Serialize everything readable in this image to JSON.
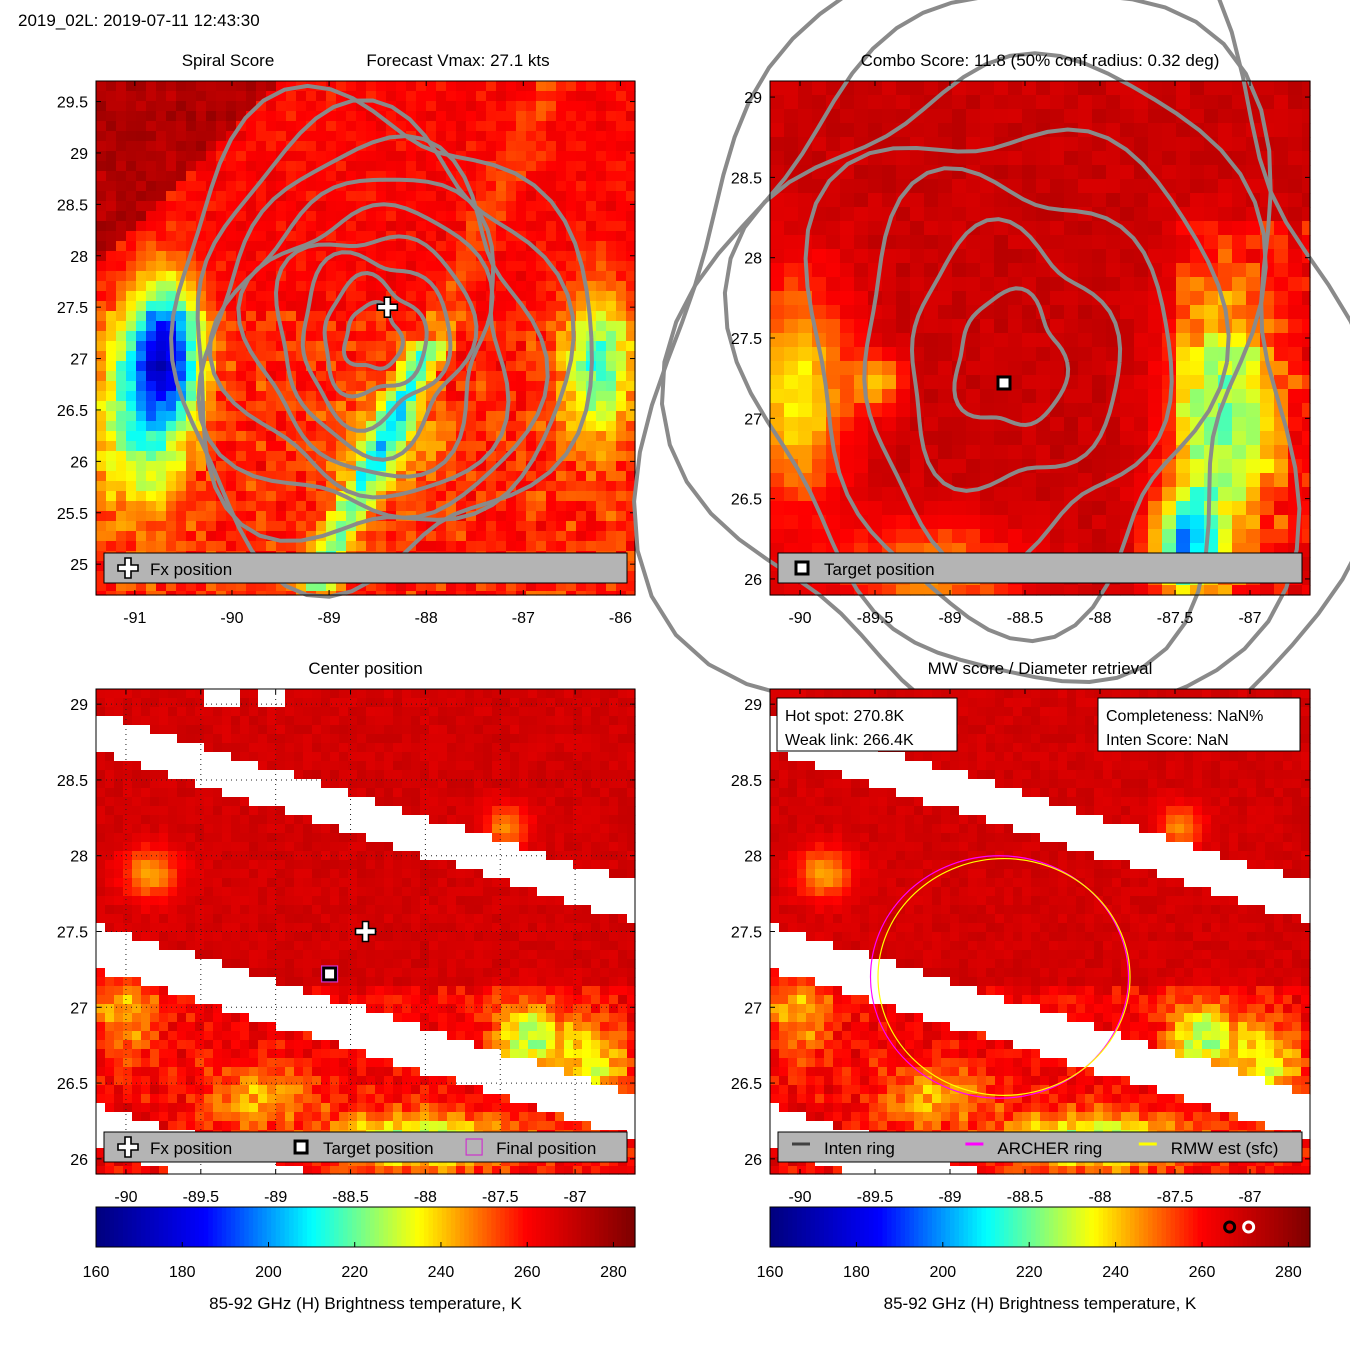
{
  "header": {
    "title": "2019_02L: 2019-07-11 12:43:30"
  },
  "colors": {
    "contour": "#8a8a8a",
    "legend_bg": "#b4b4b4",
    "archer_ring": "#ff00ff",
    "rmw_ring": "#ffff00",
    "inten_ring": "#404040",
    "final_marker": "#cc33cc"
  },
  "chart_data": [
    {
      "id": "spiral",
      "type": "heatmap",
      "title_left": "Spiral Score",
      "title_right": "Forecast Vmax: 27.1 kts",
      "xlim": [
        -91.4,
        -85.85
      ],
      "ylim": [
        24.7,
        29.7
      ],
      "xticks": [
        -91,
        -90,
        -89,
        -88,
        -87,
        -86
      ],
      "yticks": [
        25,
        25.5,
        26,
        26.5,
        27,
        27.5,
        28,
        28.5,
        29,
        29.5
      ],
      "grid": false,
      "contours": {
        "center": [
          -88.55,
          27.2
        ],
        "levels": 9
      },
      "markers": [
        {
          "type": "fx",
          "lon": -88.4,
          "lat": 27.5
        }
      ],
      "legend": {
        "placement": "bottom",
        "entries": [
          {
            "marker": "fx",
            "label": "Fx position"
          }
        ]
      }
    },
    {
      "id": "combo",
      "type": "heatmap",
      "title": "Combo Score: 11.8  (50% conf radius: 0.32 deg)",
      "xlim": [
        -90.2,
        -86.6
      ],
      "ylim": [
        25.9,
        29.1
      ],
      "xticks": [
        -90,
        -89.5,
        -89,
        -88.5,
        -88,
        -87.5,
        -87
      ],
      "yticks": [
        26,
        26.5,
        27,
        27.5,
        28,
        28.5,
        29
      ],
      "grid": false,
      "contours": {
        "center": [
          -88.6,
          27.35
        ],
        "levels": 7
      },
      "markers": [
        {
          "type": "target",
          "lon": -88.64,
          "lat": 27.22
        }
      ],
      "legend": {
        "placement": "bottom",
        "entries": [
          {
            "marker": "target",
            "label": "Target position"
          }
        ]
      }
    },
    {
      "id": "center",
      "type": "heatmap",
      "title": "Center position",
      "xlim": [
        -90.2,
        -86.6
      ],
      "ylim": [
        25.9,
        29.1
      ],
      "xticks": [
        -90,
        -89.5,
        -89,
        -88.5,
        -88,
        -87.5,
        -87
      ],
      "yticks": [
        26,
        26.5,
        27,
        27.5,
        28,
        28.5,
        29
      ],
      "grid": true,
      "markers": [
        {
          "type": "fx",
          "lon": -88.4,
          "lat": 27.5
        },
        {
          "type": "target",
          "lon": -88.64,
          "lat": 27.22
        },
        {
          "type": "final",
          "lon": -88.64,
          "lat": 27.22
        }
      ],
      "legend": {
        "placement": "bottom",
        "entries": [
          {
            "marker": "fx",
            "label": "Fx position"
          },
          {
            "marker": "target",
            "label": "Target position"
          },
          {
            "marker": "final",
            "label": "Final position"
          }
        ]
      }
    },
    {
      "id": "mw",
      "type": "heatmap",
      "title": "MW score / Diameter retrieval",
      "xlim": [
        -90.2,
        -86.6
      ],
      "ylim": [
        25.9,
        29.1
      ],
      "xticks": [
        -90,
        -89.5,
        -89,
        -88.5,
        -88,
        -87.5,
        -87
      ],
      "yticks": [
        26,
        26.5,
        27,
        27.5,
        28,
        28.5,
        29
      ],
      "grid": false,
      "rings": [
        {
          "name": "archer",
          "lon": -88.67,
          "lat": 27.2,
          "radius_deg": 0.86
        },
        {
          "name": "rmw",
          "lon": -88.64,
          "lat": 27.2,
          "radius_deg": 0.84
        }
      ],
      "info_left": {
        "line1": "Hot spot: 270.8K",
        "line2": "Weak link: 266.4K"
      },
      "info_right": {
        "line1": "Completeness: NaN%",
        "line2": "Inten Score: NaN"
      },
      "legend": {
        "placement": "bottom",
        "entries": [
          {
            "marker": "inten",
            "label": "Inten ring"
          },
          {
            "marker": "archer",
            "label": "ARCHER ring"
          },
          {
            "marker": "rmw",
            "label": "RMW est (sfc)"
          }
        ]
      }
    }
  ],
  "colorbars": [
    {
      "id": "cb-left",
      "range": [
        160,
        285
      ],
      "ticks": [
        160,
        180,
        200,
        220,
        240,
        260,
        280
      ],
      "label": "85-92 GHz (H) Brightness temperature, K"
    },
    {
      "id": "cb-right",
      "range": [
        160,
        285
      ],
      "ticks": [
        160,
        180,
        200,
        220,
        240,
        260,
        280
      ],
      "label": "85-92 GHz (H) Brightness temperature, K",
      "markers": [
        {
          "value": 266.4,
          "ring": "black"
        },
        {
          "value": 270.8,
          "ring": "white"
        }
      ]
    }
  ]
}
